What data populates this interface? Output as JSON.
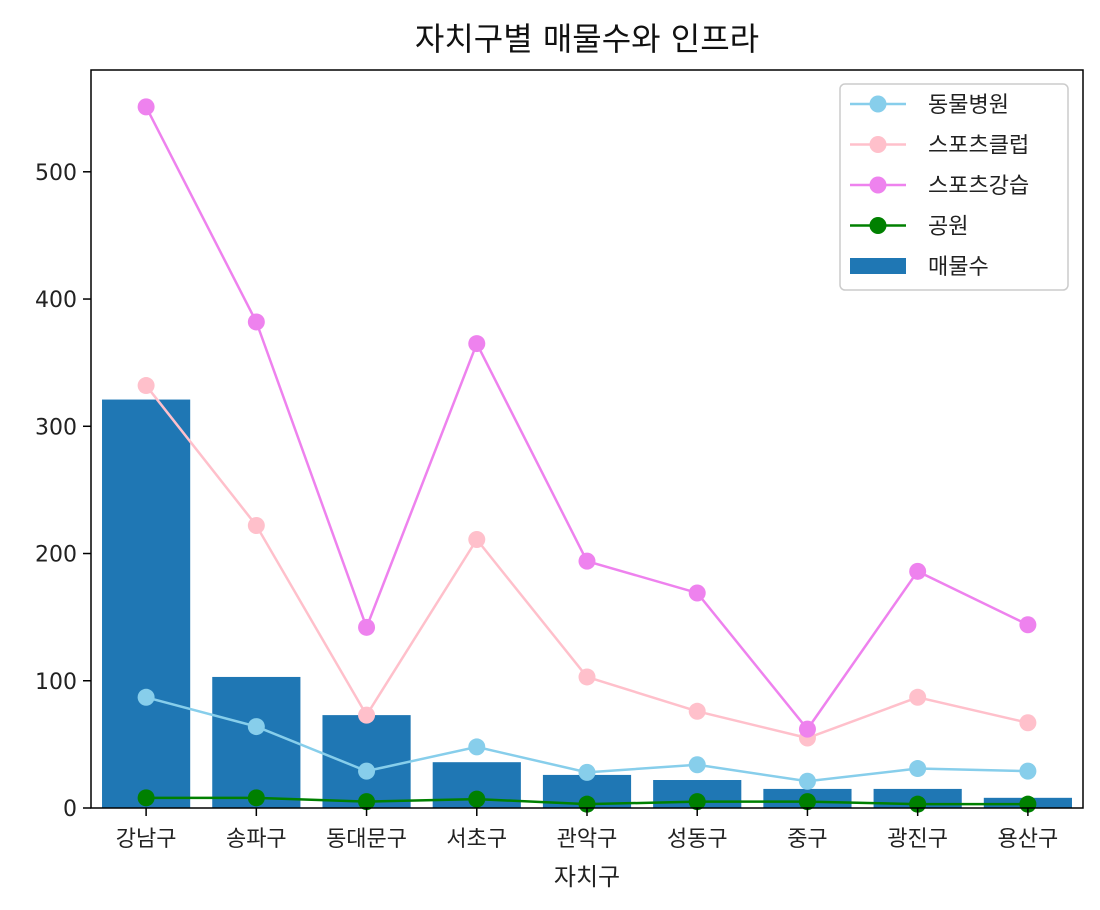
{
  "chart_data": {
    "type": "bar",
    "title": "자치구별 매물수와 인프라",
    "xlabel": "자치구",
    "ylabel": "",
    "categories": [
      "강남구",
      "송파구",
      "동대문구",
      "서초구",
      "관악구",
      "성동구",
      "중구",
      "광진구",
      "용산구"
    ],
    "ylim": [
      0,
      580
    ],
    "yticks": [
      0,
      100,
      200,
      300,
      400,
      500
    ],
    "legend_position": "top-right",
    "grid": false,
    "bars": {
      "name": "매물수",
      "color": "#1f77b4",
      "values": [
        321,
        103,
        73,
        36,
        26,
        22,
        15,
        15,
        8
      ]
    },
    "series": [
      {
        "name": "동물병원",
        "color": "#87ceeb",
        "values": [
          87,
          64,
          29,
          48,
          28,
          34,
          21,
          31,
          29
        ]
      },
      {
        "name": "스포츠클럽",
        "color": "#ffc0cb",
        "values": [
          332,
          222,
          73,
          211,
          103,
          76,
          55,
          87,
          67
        ]
      },
      {
        "name": "스포츠강습",
        "color": "#ee82ee",
        "values": [
          551,
          382,
          142,
          365,
          194,
          169,
          62,
          186,
          144
        ]
      },
      {
        "name": "공원",
        "color": "#008000",
        "values": [
          8,
          8,
          5,
          7,
          3,
          5,
          5,
          3,
          3
        ]
      }
    ]
  }
}
